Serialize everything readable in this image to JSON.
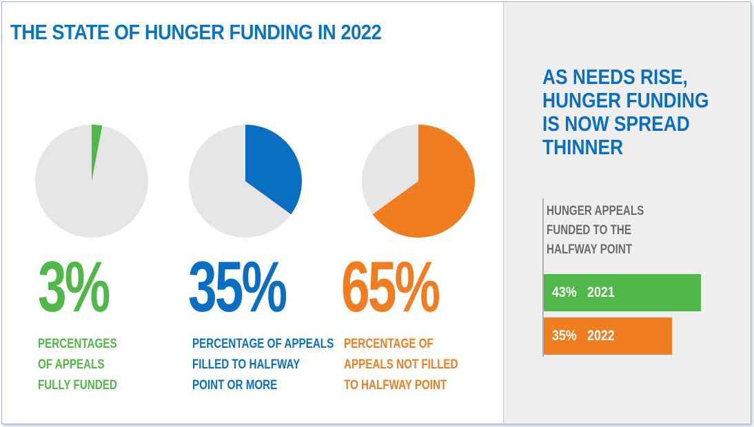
{
  "title": "THE STATE OF HUNGER FUNDING IN 2022",
  "colors": {
    "green": "#4fb848",
    "blue": "#0a6fc2",
    "orange": "#f07d1f",
    "pie_bg": "#e6e6e6",
    "title_blue": "#0a74c4"
  },
  "chart_data": [
    {
      "type": "pie",
      "values": [
        3,
        97
      ],
      "highlight_color": "#4fb848",
      "value_label": "3%",
      "caption": "PERCENTAGES\nOF APPEALS\nFULLY FUNDED"
    },
    {
      "type": "pie",
      "values": [
        35,
        65
      ],
      "highlight_color": "#0a6fc2",
      "value_label": "35%",
      "caption": "PERCENTAGE OF APPEALS\nFILLED TO HALFWAY\nPOINT OR MORE"
    },
    {
      "type": "pie",
      "values": [
        65,
        35
      ],
      "highlight_color": "#f07d1f",
      "value_label": "65%",
      "caption": "PERCENTAGE OF\nAPPEALS NOT FILLED\nTO HALFWAY POINT"
    },
    {
      "type": "bar",
      "orientation": "horizontal",
      "title": "AS NEEDS RISE,\nHUNGER FUNDING\nIS NOW SPREAD\nTHINNER",
      "subtitle": "HUNGER APPEALS\nFUNDED TO THE\nHALFWAY POINT",
      "categories": [
        "2021",
        "2022"
      ],
      "values": [
        43,
        35
      ],
      "value_labels": [
        "43%",
        "35%"
      ],
      "bar_colors": [
        "#4fb848",
        "#f07d1f"
      ],
      "xlim": [
        0,
        43
      ]
    }
  ]
}
